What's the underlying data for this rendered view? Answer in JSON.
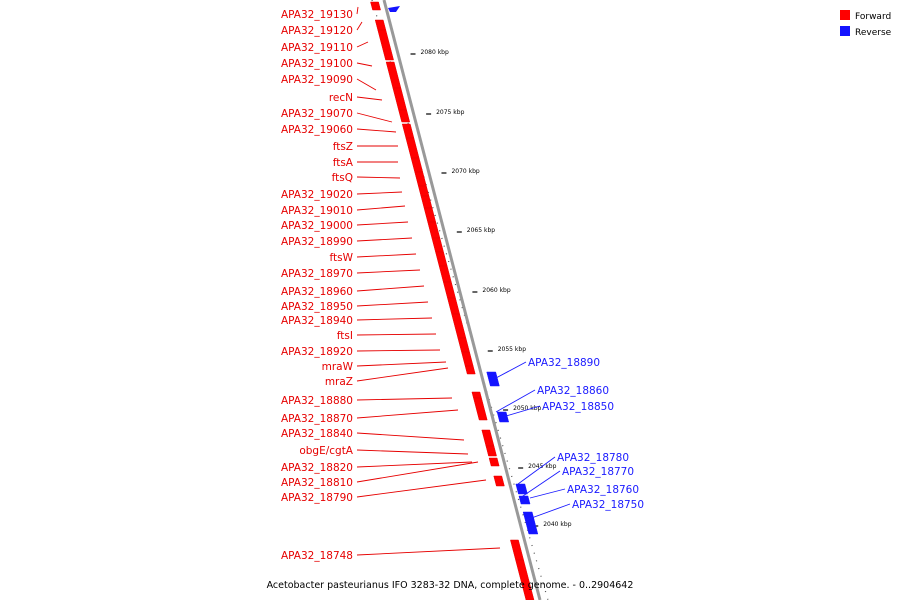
{
  "colors": {
    "forward": "#ff0000",
    "reverse": "#1414ff",
    "axis": "#999999",
    "leader_fwd": "#e60000",
    "leader_rev": "#1a1aff"
  },
  "legend": [
    {
      "name": "Forward",
      "color": "#ff0000"
    },
    {
      "name": "Reverse",
      "color": "#1414ff"
    }
  ],
  "footer": "Acetobacter pasteurianus IFO 3283-32 DNA, complete genome. - 0..2904642",
  "ticks": [
    "2080 kbp",
    "2075 kbp",
    "2070 kbp",
    "2065 kbp",
    "2060 kbp",
    "2055 kbp",
    "2050 kbp",
    "2045 kbp",
    "2040 kbp"
  ],
  "forward_genes": [
    "APA32_19130",
    "APA32_19120",
    "APA32_19110",
    "APA32_19100",
    "APA32_19090",
    "recN",
    "APA32_19070",
    "APA32_19060",
    "ftsZ",
    "ftsA",
    "ftsQ",
    "APA32_19020",
    "APA32_19010",
    "APA32_19000",
    "APA32_18990",
    "ftsW",
    "APA32_18970",
    "APA32_18960",
    "APA32_18950",
    "APA32_18940",
    "ftsI",
    "APA32_18920",
    "mraW",
    "mraZ",
    "APA32_18880",
    "APA32_18870",
    "APA32_18840",
    "obgE/cgtA",
    "APA32_18820",
    "APA32_18810",
    "APA32_18790",
    "APA32_18748"
  ],
  "reverse_genes": [
    "APA32_18890",
    "APA32_18860",
    "APA32_18850",
    "APA32_18780",
    "APA32_18770",
    "APA32_18760",
    "APA32_18750"
  ]
}
